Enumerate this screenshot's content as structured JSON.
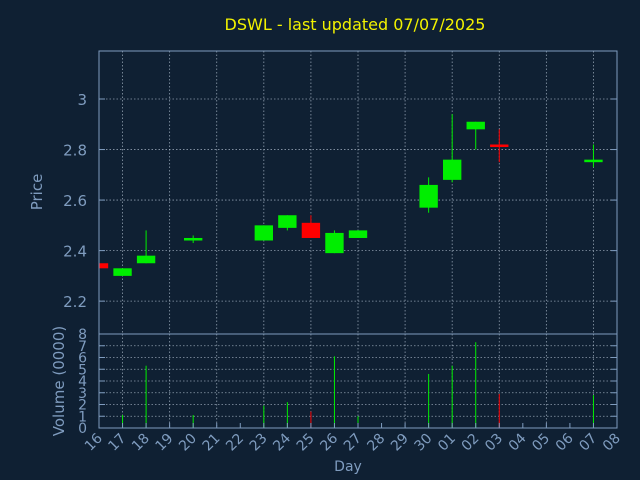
{
  "colors": {
    "background": "#0f2033",
    "axis": "#7f9cbf",
    "grid": "#b8c6d6",
    "title": "#f2f200",
    "up": "#00ee00",
    "down": "#ff0000"
  },
  "chart_data": [
    {
      "type": "candlestick",
      "title": "DSWL - last updated 07/07/2025",
      "ylabel": "Price",
      "xlabel": "",
      "ylim": [
        2.07,
        3.19
      ],
      "yticks": [
        "2.2",
        "2.4",
        "2.6",
        "2.8",
        "3"
      ],
      "x_tick_labels": [
        "16",
        "17",
        "18",
        "19",
        "20",
        "21",
        "22",
        "23",
        "24",
        "25",
        "26",
        "27",
        "28",
        "29",
        "30",
        "01",
        "02",
        "03",
        "04",
        "05",
        "06",
        "07",
        "08"
      ],
      "grid": true,
      "candles": [
        {
          "day": "16",
          "open": 2.35,
          "high": 2.35,
          "low": 2.33,
          "close": 2.33
        },
        {
          "day": "17",
          "open": 2.3,
          "high": 2.33,
          "low": 2.3,
          "close": 2.33
        },
        {
          "day": "18",
          "open": 2.35,
          "high": 2.48,
          "low": 2.35,
          "close": 2.38
        },
        {
          "day": "20",
          "open": 2.44,
          "high": 2.46,
          "low": 2.43,
          "close": 2.45
        },
        {
          "day": "23",
          "open": 2.44,
          "high": 2.5,
          "low": 2.44,
          "close": 2.5
        },
        {
          "day": "24",
          "open": 2.49,
          "high": 2.54,
          "low": 2.48,
          "close": 2.54
        },
        {
          "day": "25",
          "open": 2.51,
          "high": 2.54,
          "low": 2.45,
          "close": 2.45
        },
        {
          "day": "26",
          "open": 2.39,
          "high": 2.48,
          "low": 2.39,
          "close": 2.47
        },
        {
          "day": "27",
          "open": 2.45,
          "high": 2.48,
          "low": 2.45,
          "close": 2.48
        },
        {
          "day": "30",
          "open": 2.57,
          "high": 2.69,
          "low": 2.55,
          "close": 2.66
        },
        {
          "day": "01",
          "open": 2.68,
          "high": 2.94,
          "low": 2.67,
          "close": 2.76
        },
        {
          "day": "02",
          "open": 2.88,
          "high": 2.91,
          "low": 2.8,
          "close": 2.91
        },
        {
          "day": "03",
          "open": 2.82,
          "high": 2.88,
          "low": 2.75,
          "close": 2.81
        },
        {
          "day": "07",
          "open": 2.75,
          "high": 2.82,
          "low": 2.73,
          "close": 2.76
        }
      ]
    },
    {
      "type": "bar",
      "ylabel": "Volume (0000)",
      "xlabel": "Day",
      "ylim": [
        0,
        8
      ],
      "yticks": [
        "0",
        "1",
        "2",
        "3",
        "4",
        "5",
        "6",
        "7",
        "8"
      ],
      "x_tick_labels": [
        "16",
        "17",
        "18",
        "19",
        "20",
        "21",
        "22",
        "23",
        "24",
        "25",
        "26",
        "27",
        "28",
        "29",
        "30",
        "01",
        "02",
        "03",
        "04",
        "05",
        "06",
        "07",
        "08"
      ],
      "grid": true,
      "bars": [
        {
          "day": "16",
          "value": 0.1,
          "direction": "down"
        },
        {
          "day": "17",
          "value": 1.1,
          "direction": "up"
        },
        {
          "day": "18",
          "value": 5.3,
          "direction": "up"
        },
        {
          "day": "20",
          "value": 1.1,
          "direction": "up"
        },
        {
          "day": "23",
          "value": 1.9,
          "direction": "up"
        },
        {
          "day": "24",
          "value": 2.2,
          "direction": "up"
        },
        {
          "day": "25",
          "value": 1.4,
          "direction": "down"
        },
        {
          "day": "26",
          "value": 6.1,
          "direction": "up"
        },
        {
          "day": "27",
          "value": 1.0,
          "direction": "up"
        },
        {
          "day": "30",
          "value": 4.6,
          "direction": "up"
        },
        {
          "day": "01",
          "value": 5.3,
          "direction": "up"
        },
        {
          "day": "02",
          "value": 7.3,
          "direction": "up"
        },
        {
          "day": "03",
          "value": 2.9,
          "direction": "down"
        },
        {
          "day": "07",
          "value": 2.8,
          "direction": "up"
        }
      ]
    }
  ]
}
